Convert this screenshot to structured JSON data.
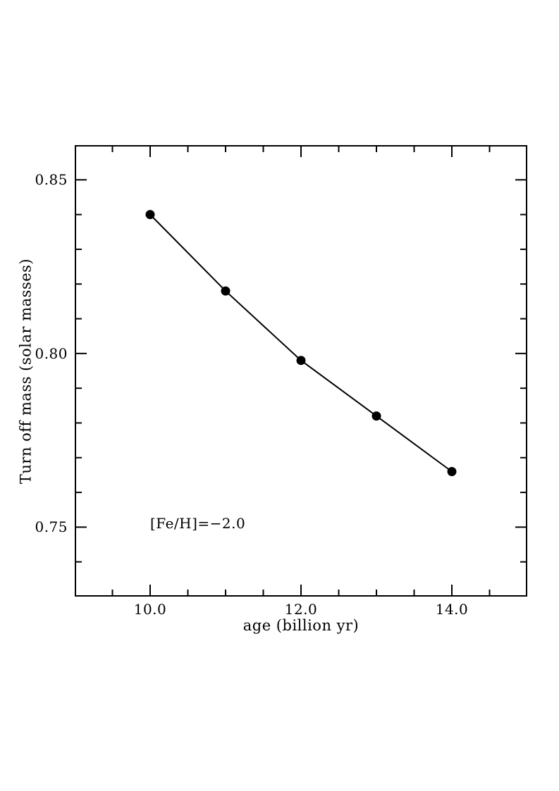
{
  "figure": {
    "background": "#ffffff",
    "ink_color": "#000000"
  },
  "chart_data": {
    "type": "line",
    "title": "",
    "xlabel": "age (billion yr)",
    "ylabel": "Turn off mass (solar masses)",
    "x": [
      10.0,
      11.0,
      12.0,
      13.0,
      14.0
    ],
    "y": [
      0.84,
      0.818,
      0.798,
      0.782,
      0.766
    ],
    "series_name": "turn-off mass",
    "xlim": [
      9.0,
      15.0
    ],
    "ylim": [
      0.73,
      0.86
    ],
    "x_major_ticks": [
      10.0,
      12.0,
      14.0
    ],
    "x_tick_labels": [
      "10.0",
      "12.0",
      "14.0"
    ],
    "x_minor_ticks": [
      9.5,
      10.5,
      11.0,
      11.5,
      12.5,
      13.0,
      13.5,
      14.5
    ],
    "y_major_ticks": [
      0.75,
      0.8,
      0.85
    ],
    "y_tick_labels": [
      "0.75",
      "0.80",
      "0.85"
    ],
    "y_minor_ticks": [
      0.74,
      0.76,
      0.77,
      0.78,
      0.79,
      0.81,
      0.82,
      0.83,
      0.84
    ],
    "grid": false,
    "legend": null,
    "marker": "filled-circle",
    "line_style": "solid",
    "annotation": {
      "text": "[Fe/H]=−2.0",
      "x": 10.0,
      "y": 0.751
    }
  }
}
